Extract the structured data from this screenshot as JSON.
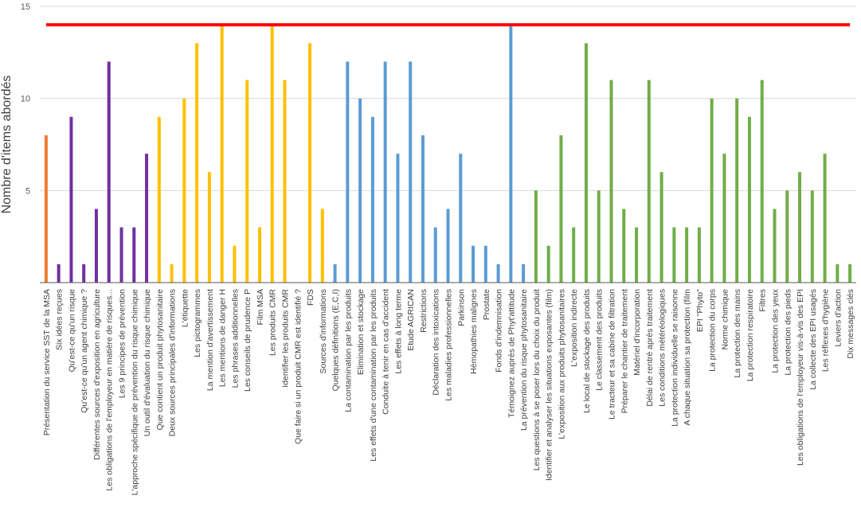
{
  "chart_data": {
    "type": "bar",
    "title": "",
    "xlabel": "",
    "ylabel": "Nombre d'items abordés",
    "ylim": [
      0,
      15
    ],
    "yticks": [
      5,
      10,
      15
    ],
    "grid": true,
    "reference_line": {
      "value": 14,
      "color": "#ff0000"
    },
    "colors": {
      "orange": "#ed7d31",
      "purple": "#7030a0",
      "yellow": "#ffc000",
      "blue": "#5b9bd5",
      "green": "#70ad47"
    },
    "categories": [
      "Présentation du service SST de la MSA",
      "Six idées reçues",
      "Qu'est-ce qu'un risque",
      "Qu'est-ce qu'un agent chimique ?",
      "Différentes sources d'exposition en agriculture",
      "Les obligations de l'employeur en matière de risques...",
      "Les 9 principes de prévention",
      "L'approche spécifique de prévention du risque chimique",
      "Un outil d'évaluation du risque chimique",
      "Que contient un produit phytosanitaire",
      "Deux sources principales d'informations",
      "L'étiquette",
      "Les pictogrammes",
      "La mention d'avertissement",
      "Les mentions de danger H",
      "Les phrases additionnelles",
      "Les conseils de prudence P",
      "Film MSA",
      "Les produits CMR",
      "Identifier les produits CMR",
      "Que faire si un produit CMR est identifié ?",
      "FDS",
      "Sources d'informations",
      "Quelques définitions (E,C,I)",
      "La contamination par les produits",
      "Elimination et stockage",
      "Les effets d'une contamination par les produits",
      "Conduite à tenir en cas d'accident",
      "Les effets à long terme",
      "Etude AGRICAN",
      "Restrictions",
      "Déclaration des intoxications",
      "Les maladies professionnelles",
      "Parkinson",
      "Hémopathies malignes",
      "Prostate",
      "Fonds d'indemnisation",
      "Témoignez auprès de Phyt'attitude",
      "La prévention du risque phytosanitaire",
      "Les questions à se poser lors du choix du produit",
      "Identifier et analyser les situations exposantes (film)",
      "L'exposition aux produits phytosanitaires",
      "L'exposition indirecte",
      "Le local de stockage des produits",
      "Le classement des produits",
      "Le tracteur et sa cabine de filtration",
      "Préparer le chantier de traitement",
      "Matériel d'incorporation",
      "Délai de rentré après traitement",
      "Les conditions météréologiques",
      "La protection individuelle se raisonne",
      "A chaque situation sa protection (film",
      "EPI \"Phyto\"",
      "La protection du corps",
      "Norme chimique",
      "La protection des mains",
      "La protection respiratoire",
      "Filtres",
      "La protection des yeux",
      "La protection des pieds",
      "Les obligations de l'employeur vis-à-vis des EPI",
      "La collecte des EPI usagés",
      "Les réflexes d'hygiène",
      "Leviers d'action",
      "Dix messages clés"
    ],
    "values": [
      8,
      1,
      9,
      1,
      4,
      12,
      3,
      3,
      7,
      9,
      1,
      10,
      13,
      6,
      14,
      2,
      11,
      3,
      14,
      11,
      0,
      13,
      4,
      1,
      12,
      10,
      9,
      12,
      7,
      12,
      8,
      3,
      4,
      7,
      2,
      2,
      1,
      14,
      1,
      5,
      2,
      8,
      3,
      13,
      5,
      11,
      4,
      3,
      11,
      6,
      3,
      3,
      3,
      10,
      7,
      10,
      9,
      11,
      4,
      5,
      6,
      5,
      7,
      1,
      1
    ],
    "bar_colors": [
      "orange",
      "purple",
      "purple",
      "purple",
      "purple",
      "purple",
      "purple",
      "purple",
      "purple",
      "yellow",
      "yellow",
      "yellow",
      "yellow",
      "yellow",
      "yellow",
      "yellow",
      "yellow",
      "yellow",
      "yellow",
      "yellow",
      "yellow",
      "yellow",
      "yellow",
      "blue",
      "blue",
      "blue",
      "blue",
      "blue",
      "blue",
      "blue",
      "blue",
      "blue",
      "blue",
      "blue",
      "blue",
      "blue",
      "blue",
      "blue",
      "blue",
      "green",
      "green",
      "green",
      "green",
      "green",
      "green",
      "green",
      "green",
      "green",
      "green",
      "green",
      "green",
      "green",
      "green",
      "green",
      "green",
      "green",
      "green",
      "green",
      "green",
      "green",
      "green",
      "green",
      "green",
      "green",
      "green"
    ]
  }
}
